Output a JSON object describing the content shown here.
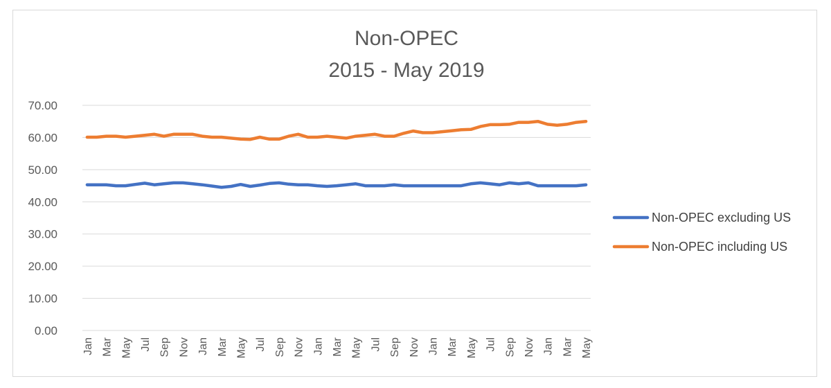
{
  "chart_data": {
    "type": "line",
    "title_lines": [
      "Non-OPEC",
      "2015 - May 2019"
    ],
    "xlabel": "",
    "ylabel": "",
    "ylim": [
      0,
      70
    ],
    "y_ticks": [
      "0.00",
      "10.00",
      "20.00",
      "30.00",
      "40.00",
      "50.00",
      "60.00",
      "70.00"
    ],
    "grid": true,
    "legend_position": "right",
    "x": [
      "Jan",
      "Feb",
      "Mar",
      "Apr",
      "May",
      "Jun",
      "Jul",
      "Aug",
      "Sep",
      "Oct",
      "Nov",
      "Dec",
      "Jan",
      "Feb",
      "Mar",
      "Apr",
      "May",
      "Jun",
      "Jul",
      "Aug",
      "Sep",
      "Oct",
      "Nov",
      "Dec",
      "Jan",
      "Feb",
      "Mar",
      "Apr",
      "May",
      "Jun",
      "Jul",
      "Aug",
      "Sep",
      "Oct",
      "Nov",
      "Dec",
      "Jan",
      "Feb",
      "Mar",
      "Apr",
      "May",
      "Jun",
      "Jul",
      "Aug",
      "Sep",
      "Oct",
      "Nov",
      "Dec",
      "Jan",
      "Feb",
      "Mar",
      "Apr",
      "May"
    ],
    "x_tick_labels": [
      "Jan",
      "Mar",
      "May",
      "Jul",
      "Sep",
      "Nov",
      "Jan",
      "Mar",
      "May",
      "Jul",
      "Sep",
      "Nov",
      "Jan",
      "Mar",
      "May",
      "Jul",
      "Sep",
      "Nov",
      "Jan",
      "Mar",
      "May",
      "Jul",
      "Sep",
      "Nov",
      "Jan",
      "Mar",
      "May"
    ],
    "series": [
      {
        "name": "Non-OPEC excluding US",
        "color": "#4472C4",
        "values": [
          45.3,
          45.3,
          45.3,
          45.0,
          45.0,
          45.4,
          45.8,
          45.3,
          45.6,
          45.9,
          45.9,
          45.6,
          45.3,
          44.9,
          44.5,
          44.8,
          45.4,
          44.8,
          45.2,
          45.7,
          45.9,
          45.5,
          45.3,
          45.3,
          45.0,
          44.8,
          45.0,
          45.3,
          45.6,
          45.0,
          45.0,
          45.0,
          45.3,
          45.0,
          45.0,
          45.0,
          45.0,
          45.0,
          45.0,
          45.0,
          45.6,
          45.9,
          45.6,
          45.3,
          45.9,
          45.6,
          45.9,
          45.0,
          45.0,
          45.0,
          45.0,
          45.0,
          45.3
        ]
      },
      {
        "name": "Non-OPEC including US",
        "color": "#ED7D31",
        "values": [
          60.1,
          60.1,
          60.4,
          60.4,
          60.1,
          60.4,
          60.7,
          61.0,
          60.4,
          61.0,
          61.0,
          61.0,
          60.4,
          60.1,
          60.1,
          59.8,
          59.5,
          59.4,
          60.1,
          59.5,
          59.5,
          60.4,
          61.0,
          60.1,
          60.1,
          60.4,
          60.1,
          59.8,
          60.4,
          60.7,
          61.0,
          60.4,
          60.4,
          61.3,
          62.0,
          61.5,
          61.5,
          61.8,
          62.1,
          62.4,
          62.5,
          63.4,
          64.0,
          64.0,
          64.1,
          64.7,
          64.7,
          65.0,
          64.1,
          63.8,
          64.1,
          64.7,
          65.0
        ]
      }
    ]
  }
}
